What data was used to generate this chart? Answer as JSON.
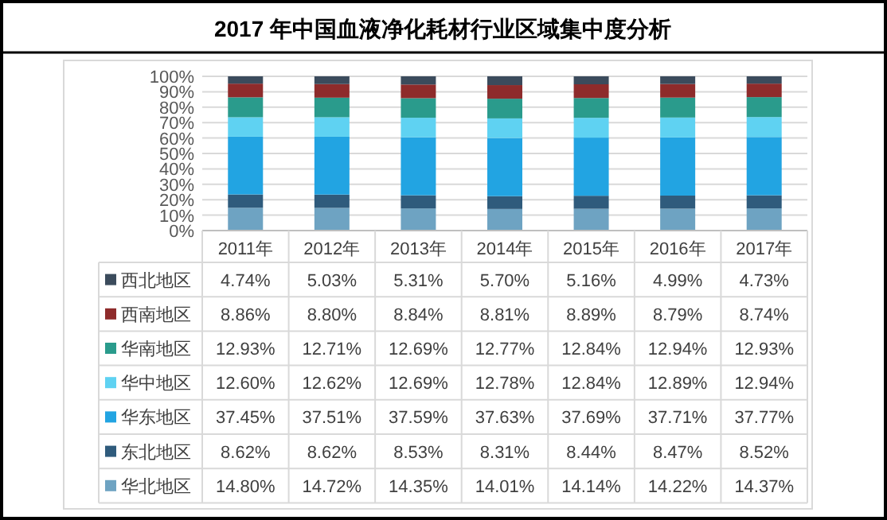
{
  "chart_data": {
    "type": "bar",
    "stacked": true,
    "title": "2017 年中国血液净化耗材行业区域集中度分析",
    "categories": [
      "2011年",
      "2012年",
      "2013年",
      "2014年",
      "2015年",
      "2016年",
      "2017年"
    ],
    "ylim": [
      0,
      100
    ],
    "yticks": [
      {
        "value": 0,
        "label": "0%"
      },
      {
        "value": 10,
        "label": "10%"
      },
      {
        "value": 20,
        "label": "20%"
      },
      {
        "value": 30,
        "label": "30%"
      },
      {
        "value": 40,
        "label": "40%"
      },
      {
        "value": 50,
        "label": "50%"
      },
      {
        "value": 60,
        "label": "60%"
      },
      {
        "value": 70,
        "label": "70%"
      },
      {
        "value": 80,
        "label": "80%"
      },
      {
        "value": 90,
        "label": "90%"
      },
      {
        "value": 100,
        "label": "100%"
      }
    ],
    "grid": "y",
    "legend": "bottom",
    "series": [
      {
        "name": "华北地区",
        "color": "#6ea3c2",
        "values": [
          14.8,
          14.72,
          14.35,
          14.01,
          14.14,
          14.22,
          14.37
        ],
        "value_labels": [
          "14.80%",
          "14.72%",
          "14.35%",
          "14.01%",
          "14.14%",
          "14.22%",
          "14.37%"
        ]
      },
      {
        "name": "东北地区",
        "color": "#2f5b7c",
        "values": [
          8.62,
          8.62,
          8.53,
          8.31,
          8.44,
          8.47,
          8.52
        ],
        "value_labels": [
          "8.62%",
          "8.62%",
          "8.53%",
          "8.31%",
          "8.44%",
          "8.47%",
          "8.52%"
        ]
      },
      {
        "name": "华东地区",
        "color": "#22a4e2",
        "values": [
          37.45,
          37.51,
          37.59,
          37.63,
          37.69,
          37.71,
          37.77
        ],
        "value_labels": [
          "37.45%",
          "37.51%",
          "37.59%",
          "37.63%",
          "37.69%",
          "37.71%",
          "37.77%"
        ]
      },
      {
        "name": "华中地区",
        "color": "#5fd2f2",
        "values": [
          12.6,
          12.62,
          12.69,
          12.78,
          12.84,
          12.89,
          12.94
        ],
        "value_labels": [
          "12.60%",
          "12.62%",
          "12.69%",
          "12.78%",
          "12.84%",
          "12.89%",
          "12.94%"
        ]
      },
      {
        "name": "华南地区",
        "color": "#2a9b8c",
        "values": [
          12.93,
          12.71,
          12.69,
          12.77,
          12.84,
          12.94,
          12.93
        ],
        "value_labels": [
          "12.93%",
          "12.71%",
          "12.69%",
          "12.77%",
          "12.84%",
          "12.94%",
          "12.93%"
        ]
      },
      {
        "name": "西南地区",
        "color": "#8e2b2b",
        "values": [
          8.86,
          8.8,
          8.84,
          8.81,
          8.89,
          8.79,
          8.74
        ],
        "value_labels": [
          "8.86%",
          "8.80%",
          "8.84%",
          "8.81%",
          "8.89%",
          "8.79%",
          "8.74%"
        ]
      },
      {
        "name": "西北地区",
        "color": "#3b4b5c",
        "values": [
          4.74,
          5.03,
          5.31,
          5.7,
          5.16,
          4.99,
          4.73
        ],
        "value_labels": [
          "4.74%",
          "5.03%",
          "5.31%",
          "5.70%",
          "5.16%",
          "4.99%",
          "4.73%"
        ]
      }
    ]
  }
}
